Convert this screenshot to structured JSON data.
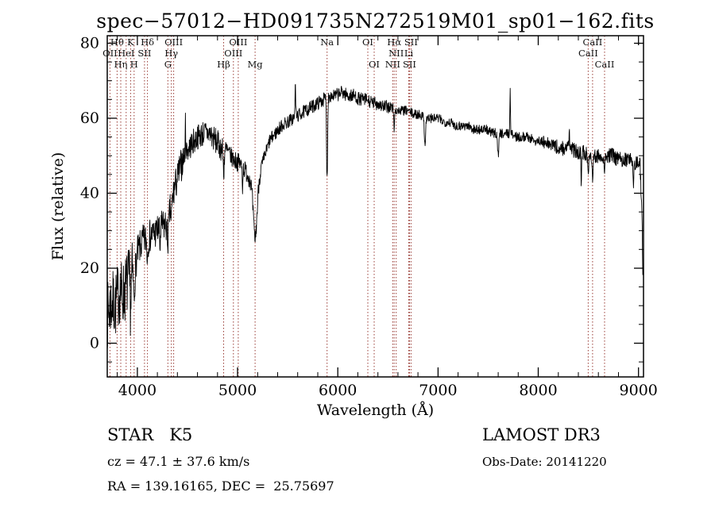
{
  "title": "spec−57012−HD091735N272519M01_sp01−162.fits",
  "footer": {
    "class_label": "STAR   K5",
    "survey": "LAMOST DR3",
    "cz": "cz = 47.1 ± 37.6 km/s",
    "obs_date": "Obs-Date: 20141220",
    "coords": "RA = 139.16165, DEC =  25.75697"
  },
  "chart_data": {
    "type": "line",
    "title": "spec−57012−HD091735N272519M01_sp01−162.fits",
    "xlabel": "Wavelength (Å)",
    "ylabel": "Flux (relative)",
    "xlim": [
      3700,
      9050
    ],
    "ylim": [
      -9,
      82
    ],
    "x_ticks": [
      4000,
      5000,
      6000,
      7000,
      8000,
      9000
    ],
    "y_ticks": [
      0,
      20,
      40,
      60,
      80
    ],
    "x_minor_step": 200,
    "y_minor_step": 5,
    "grid": false,
    "legend": "none",
    "line_color": "#000000",
    "marker_color": "#9a3c36",
    "sample_step": 3,
    "noise_seed": 7,
    "envelope": [
      [
        3700,
        7
      ],
      [
        3740,
        11
      ],
      [
        3780,
        10
      ],
      [
        3820,
        14
      ],
      [
        3860,
        13
      ],
      [
        3900,
        16
      ],
      [
        3940,
        18
      ],
      [
        3980,
        20
      ],
      [
        4000,
        24
      ],
      [
        4050,
        27
      ],
      [
        4100,
        28
      ],
      [
        4150,
        29
      ],
      [
        4200,
        30
      ],
      [
        4250,
        31
      ],
      [
        4300,
        32
      ],
      [
        4360,
        40
      ],
      [
        4420,
        46
      ],
      [
        4480,
        51
      ],
      [
        4540,
        53
      ],
      [
        4600,
        55
      ],
      [
        4660,
        56
      ],
      [
        4720,
        56
      ],
      [
        4780,
        54
      ],
      [
        4840,
        52
      ],
      [
        4900,
        51
      ],
      [
        4960,
        49
      ],
      [
        5020,
        48
      ],
      [
        5080,
        46
      ],
      [
        5140,
        43
      ],
      [
        5200,
        43
      ],
      [
        5260,
        49
      ],
      [
        5320,
        54
      ],
      [
        5380,
        56
      ],
      [
        5440,
        58
      ],
      [
        5500,
        59
      ],
      [
        5560,
        60
      ],
      [
        5620,
        61
      ],
      [
        5680,
        62
      ],
      [
        5740,
        63
      ],
      [
        5800,
        64
      ],
      [
        5860,
        65
      ],
      [
        5920,
        66
      ],
      [
        5980,
        66
      ],
      [
        6040,
        67
      ],
      [
        6100,
        66
      ],
      [
        6160,
        66
      ],
      [
        6220,
        65
      ],
      [
        6280,
        65
      ],
      [
        6340,
        64
      ],
      [
        6400,
        64
      ],
      [
        6460,
        63
      ],
      [
        6520,
        63
      ],
      [
        6580,
        62
      ],
      [
        6640,
        62
      ],
      [
        6700,
        62
      ],
      [
        6760,
        61
      ],
      [
        6820,
        61
      ],
      [
        6880,
        60
      ],
      [
        6940,
        60
      ],
      [
        7000,
        60
      ],
      [
        7060,
        59
      ],
      [
        7120,
        59
      ],
      [
        7180,
        58
      ],
      [
        7240,
        58
      ],
      [
        7300,
        58
      ],
      [
        7360,
        57
      ],
      [
        7420,
        57
      ],
      [
        7480,
        57
      ],
      [
        7540,
        56
      ],
      [
        7600,
        56
      ],
      [
        7660,
        56
      ],
      [
        7720,
        56
      ],
      [
        7780,
        55
      ],
      [
        7840,
        55
      ],
      [
        7900,
        55
      ],
      [
        7960,
        54
      ],
      [
        8020,
        54
      ],
      [
        8080,
        53
      ],
      [
        8140,
        53
      ],
      [
        8200,
        52
      ],
      [
        8260,
        52
      ],
      [
        8320,
        52
      ],
      [
        8380,
        51
      ],
      [
        8440,
        51
      ],
      [
        8500,
        50
      ],
      [
        8560,
        50
      ],
      [
        8620,
        50
      ],
      [
        8680,
        50
      ],
      [
        8740,
        50
      ],
      [
        8800,
        49
      ],
      [
        8860,
        49
      ],
      [
        8920,
        49
      ],
      [
        8980,
        48
      ],
      [
        9015,
        48
      ],
      [
        9035,
        35
      ],
      [
        9045,
        16
      ]
    ],
    "noise_regions": [
      [
        3700,
        3950,
        9
      ],
      [
        3950,
        4450,
        4.5
      ],
      [
        4450,
        4900,
        3.5
      ],
      [
        4900,
        5250,
        2.5
      ],
      [
        5250,
        6550,
        1.8
      ],
      [
        6550,
        8050,
        1.3
      ],
      [
        8050,
        9045,
        2
      ]
    ],
    "features": [
      {
        "wl": 3933,
        "amp": -7,
        "sigma": 6
      },
      {
        "wl": 3968,
        "amp": -7,
        "sigma": 6
      },
      {
        "wl": 4101,
        "amp": -5,
        "sigma": 5
      },
      {
        "wl": 4226,
        "amp": -5,
        "sigma": 4
      },
      {
        "wl": 4305,
        "amp": -5,
        "sigma": 8
      },
      {
        "wl": 4340,
        "amp": -4,
        "sigma": 5
      },
      {
        "wl": 4480,
        "amp": 7,
        "sigma": 3
      },
      {
        "wl": 4861,
        "amp": -6,
        "sigma": 5
      },
      {
        "wl": 5050,
        "amp": -5,
        "sigma": 3
      },
      {
        "wl": 5175,
        "amp": -15,
        "sigma": 18
      },
      {
        "wl": 5577,
        "amp": 10,
        "sigma": 3
      },
      {
        "wl": 5893,
        "amp": -22,
        "sigma": 5
      },
      {
        "wl": 6563,
        "amp": -5,
        "sigma": 4
      },
      {
        "wl": 6870,
        "amp": -7,
        "sigma": 6
      },
      {
        "wl": 7600,
        "amp": -6,
        "sigma": 6
      },
      {
        "wl": 7720,
        "amp": 11,
        "sigma": 3
      },
      {
        "wl": 8310,
        "amp": 6,
        "sigma": 3
      },
      {
        "wl": 8430,
        "amp": -9,
        "sigma": 3
      },
      {
        "wl": 8498,
        "amp": -5,
        "sigma": 4
      },
      {
        "wl": 8542,
        "amp": -6,
        "sigma": 4
      },
      {
        "wl": 8662,
        "amp": -5,
        "sigma": 4
      },
      {
        "wl": 8950,
        "amp": -7,
        "sigma": 3
      }
    ],
    "spectral_lines": [
      {
        "label": "OII",
        "wl": 3727,
        "row": 2
      },
      {
        "label": "Hθ",
        "wl": 3798,
        "row": 1
      },
      {
        "label": "Hη",
        "wl": 3835,
        "row": 3
      },
      {
        "label": "HeI",
        "wl": 3889,
        "row": 2
      },
      {
        "label": "K",
        "wl": 3933,
        "row": 1
      },
      {
        "label": "H",
        "wl": 3968,
        "row": 3
      },
      {
        "label": "SII",
        "wl": 4072,
        "row": 2
      },
      {
        "label": "Hδ",
        "wl": 4101,
        "row": 1
      },
      {
        "label": "G",
        "wl": 4305,
        "row": 3
      },
      {
        "label": "Hγ",
        "wl": 4340,
        "row": 2
      },
      {
        "label": "OIII",
        "wl": 4363,
        "row": 1
      },
      {
        "label": "Hβ",
        "wl": 4861,
        "row": 3
      },
      {
        "label": "OIII",
        "wl": 4959,
        "row": 2
      },
      {
        "label": "OIII",
        "wl": 5007,
        "row": 1
      },
      {
        "label": "Mg",
        "wl": 5175,
        "row": 3
      },
      {
        "label": "Na",
        "wl": 5893,
        "row": 1
      },
      {
        "label": "OI",
        "wl": 6300,
        "row": 1
      },
      {
        "label": "OI",
        "wl": 6363,
        "row": 3
      },
      {
        "label": "NII",
        "wl": 6548,
        "row": 3
      },
      {
        "label": "Hα",
        "wl": 6563,
        "row": 1
      },
      {
        "label": "NII",
        "wl": 6583,
        "row": 2
      },
      {
        "label": "Li",
        "wl": 6708,
        "row": 2
      },
      {
        "label": "SII",
        "wl": 6716,
        "row": 3
      },
      {
        "label": "SII",
        "wl": 6731,
        "row": 1
      },
      {
        "label": "CaII",
        "wl": 8498,
        "row": 2
      },
      {
        "label": "CaII",
        "wl": 8542,
        "row": 1
      },
      {
        "label": "CaII",
        "wl": 8662,
        "row": 3
      }
    ]
  }
}
